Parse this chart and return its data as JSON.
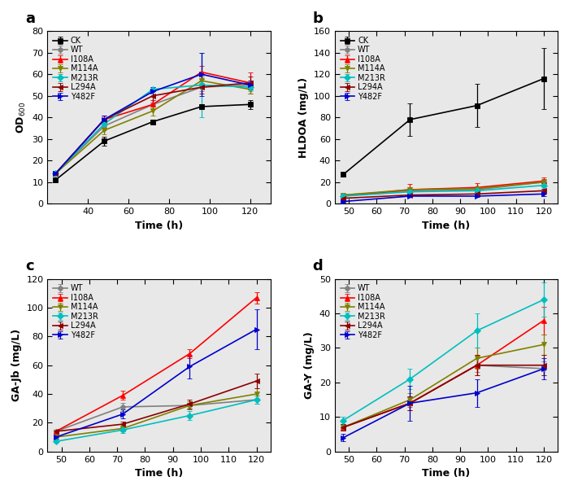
{
  "panel_a": {
    "title": "a",
    "xlabel": "Time (h)",
    "ylabel": "OD600",
    "xlim": [
      20,
      130
    ],
    "ylim": [
      0,
      80
    ],
    "xticks": [
      40,
      60,
      80,
      100,
      120
    ],
    "yticks": [
      0,
      10,
      20,
      30,
      40,
      50,
      60,
      70,
      80
    ],
    "series": {
      "CK": {
        "x": [
          24,
          48,
          72,
          96,
          120
        ],
        "y": [
          11,
          29,
          38,
          45,
          46
        ],
        "yerr": [
          1,
          2,
          1,
          1,
          2
        ],
        "color": "#000000",
        "marker": "s",
        "ls": "-"
      },
      "WT": {
        "x": [
          24,
          48,
          72,
          96,
          120
        ],
        "y": [
          14,
          36,
          46,
          54,
          55
        ],
        "yerr": [
          1,
          2,
          2,
          2,
          2
        ],
        "color": "#808080",
        "marker": "o",
        "ls": "-"
      },
      "I108A": {
        "x": [
          24,
          48,
          72,
          96,
          120
        ],
        "y": [
          14,
          39,
          46,
          61,
          56
        ],
        "yerr": [
          1,
          2,
          2,
          3,
          5
        ],
        "color": "#ff0000",
        "marker": "^",
        "ls": "-"
      },
      "M114A": {
        "x": [
          24,
          48,
          72,
          96,
          120
        ],
        "y": [
          14,
          34,
          43,
          57,
          53
        ],
        "yerr": [
          1,
          2,
          2,
          2,
          2
        ],
        "color": "#808000",
        "marker": "v",
        "ls": "-"
      },
      "M213R": {
        "x": [
          24,
          48,
          72,
          96,
          120
        ],
        "y": [
          14,
          37,
          53,
          55,
          54
        ],
        "yerr": [
          1,
          2,
          1,
          15,
          2
        ],
        "color": "#00bfbf",
        "marker": "D",
        "ls": "-"
      },
      "L294A": {
        "x": [
          24,
          48,
          72,
          96,
          120
        ],
        "y": [
          14,
          39,
          50,
          54,
          56
        ],
        "yerr": [
          1,
          2,
          3,
          3,
          3
        ],
        "color": "#8b0000",
        "marker": "<",
        "ls": "-"
      },
      "Y482F": {
        "x": [
          24,
          48,
          72,
          96,
          120
        ],
        "y": [
          14,
          39,
          52,
          60,
          55
        ],
        "yerr": [
          1,
          2,
          2,
          10,
          2
        ],
        "color": "#0000cd",
        "marker": ">",
        "ls": "-"
      }
    }
  },
  "panel_b": {
    "title": "b",
    "xlabel": "Time (h)",
    "ylabel": "HLDOA (mg/L)",
    "xlim": [
      45,
      125
    ],
    "ylim": [
      0,
      160
    ],
    "xticks": [
      50,
      60,
      70,
      80,
      90,
      100,
      110,
      120
    ],
    "yticks": [
      0,
      20,
      40,
      60,
      80,
      100,
      120,
      140,
      160
    ],
    "series": {
      "CK": {
        "x": [
          48,
          72,
          96,
          120
        ],
        "y": [
          27,
          78,
          91,
          116
        ],
        "yerr": [
          2,
          15,
          20,
          28
        ],
        "color": "#000000",
        "marker": "s",
        "ls": "-"
      },
      "WT": {
        "x": [
          48,
          72,
          96,
          120
        ],
        "y": [
          8,
          12,
          13,
          20
        ],
        "yerr": [
          1,
          2,
          2,
          3
        ],
        "color": "#808080",
        "marker": "o",
        "ls": "-"
      },
      "I108A": {
        "x": [
          48,
          72,
          96,
          120
        ],
        "y": [
          7,
          13,
          15,
          21
        ],
        "yerr": [
          1,
          5,
          4,
          3
        ],
        "color": "#ff0000",
        "marker": "^",
        "ls": "-"
      },
      "M114A": {
        "x": [
          48,
          72,
          96,
          120
        ],
        "y": [
          8,
          13,
          14,
          20
        ],
        "yerr": [
          1,
          2,
          2,
          3
        ],
        "color": "#808000",
        "marker": "v",
        "ls": "-"
      },
      "M213R": {
        "x": [
          48,
          72,
          96,
          120
        ],
        "y": [
          7,
          11,
          12,
          17
        ],
        "yerr": [
          1,
          2,
          2,
          3
        ],
        "color": "#00bfbf",
        "marker": "D",
        "ls": "-"
      },
      "L294A": {
        "x": [
          48,
          72,
          96,
          120
        ],
        "y": [
          5,
          8,
          9,
          12
        ],
        "yerr": [
          1,
          2,
          2,
          2
        ],
        "color": "#8b0000",
        "marker": "<",
        "ls": "-"
      },
      "Y482F": {
        "x": [
          48,
          72,
          96,
          120
        ],
        "y": [
          2,
          7,
          7,
          9
        ],
        "yerr": [
          1,
          1,
          1,
          2
        ],
        "color": "#0000cd",
        "marker": ">",
        "ls": "-"
      }
    }
  },
  "panel_c": {
    "title": "c",
    "xlabel": "Time (h)",
    "ylabel": "GA-Jb (mg/L)",
    "xlim": [
      45,
      125
    ],
    "ylim": [
      0,
      120
    ],
    "xticks": [
      50,
      60,
      70,
      80,
      90,
      100,
      110,
      120
    ],
    "yticks": [
      0,
      20,
      40,
      60,
      80,
      100,
      120
    ],
    "series": {
      "WT": {
        "x": [
          48,
          72,
          96,
          120
        ],
        "y": [
          14,
          31,
          32,
          36
        ],
        "yerr": [
          1,
          3,
          2,
          3
        ],
        "color": "#808080",
        "marker": "o",
        "ls": "-"
      },
      "I108A": {
        "x": [
          48,
          72,
          96,
          120
        ],
        "y": [
          14,
          39,
          68,
          107
        ],
        "yerr": [
          1,
          3,
          3,
          4
        ],
        "color": "#ff0000",
        "marker": "^",
        "ls": "-"
      },
      "M114A": {
        "x": [
          48,
          72,
          96,
          120
        ],
        "y": [
          10,
          16,
          32,
          40
        ],
        "yerr": [
          1,
          2,
          3,
          4
        ],
        "color": "#808000",
        "marker": "v",
        "ls": "-"
      },
      "M213R": {
        "x": [
          48,
          72,
          96,
          120
        ],
        "y": [
          7,
          15,
          25,
          36
        ],
        "yerr": [
          1,
          2,
          3,
          3
        ],
        "color": "#00bfbf",
        "marker": "D",
        "ls": "-"
      },
      "L294A": {
        "x": [
          48,
          72,
          96,
          120
        ],
        "y": [
          14,
          19,
          33,
          49
        ],
        "yerr": [
          1,
          2,
          3,
          5
        ],
        "color": "#8b0000",
        "marker": "<",
        "ls": "-"
      },
      "Y482F": {
        "x": [
          48,
          72,
          96,
          120
        ],
        "y": [
          10,
          26,
          59,
          85
        ],
        "yerr": [
          1,
          3,
          8,
          14
        ],
        "color": "#0000cd",
        "marker": ">",
        "ls": "-"
      }
    }
  },
  "panel_d": {
    "title": "d",
    "xlabel": "Time (h)",
    "ylabel": "GA-Y (mg/L)",
    "xlim": [
      45,
      125
    ],
    "ylim": [
      0,
      50
    ],
    "xticks": [
      50,
      60,
      70,
      80,
      90,
      100,
      110,
      120
    ],
    "yticks": [
      0,
      10,
      20,
      30,
      40,
      50
    ],
    "series": {
      "WT": {
        "x": [
          48,
          72,
          96,
          120
        ],
        "y": [
          7,
          14,
          25,
          24
        ],
        "yerr": [
          1,
          2,
          2,
          2
        ],
        "color": "#808080",
        "marker": "o",
        "ls": "-"
      },
      "I108A": {
        "x": [
          48,
          72,
          96,
          120
        ],
        "y": [
          7,
          14,
          25,
          38
        ],
        "yerr": [
          1,
          2,
          3,
          4
        ],
        "color": "#ff0000",
        "marker": "^",
        "ls": "-"
      },
      "M114A": {
        "x": [
          48,
          72,
          96,
          120
        ],
        "y": [
          7,
          15,
          27,
          31
        ],
        "yerr": [
          1,
          2,
          3,
          3
        ],
        "color": "#808000",
        "marker": "v",
        "ls": "-"
      },
      "M213R": {
        "x": [
          48,
          72,
          96,
          120
        ],
        "y": [
          9,
          21,
          35,
          44
        ],
        "yerr": [
          1,
          3,
          5,
          5
        ],
        "color": "#00bfbf",
        "marker": "D",
        "ls": "-"
      },
      "L294A": {
        "x": [
          48,
          72,
          96,
          120
        ],
        "y": [
          7,
          14,
          25,
          25
        ],
        "yerr": [
          1,
          2,
          3,
          3
        ],
        "color": "#8b0000",
        "marker": "<",
        "ls": "-"
      },
      "Y482F": {
        "x": [
          48,
          72,
          96,
          120
        ],
        "y": [
          4,
          14,
          17,
          24
        ],
        "yerr": [
          1,
          5,
          4,
          3
        ],
        "color": "#0000cd",
        "marker": ">",
        "ls": "-"
      }
    }
  },
  "figsize": [
    7.0,
    6.02
  ],
  "dpi": 100,
  "marker_size": 4,
  "linewidth": 1.2,
  "capsize": 2.5,
  "elinewidth": 0.9,
  "tick_fontsize": 8,
  "label_fontsize": 9,
  "legend_fontsize": 7,
  "panel_label_fontsize": 13,
  "bg_color": "#e8e8e8"
}
